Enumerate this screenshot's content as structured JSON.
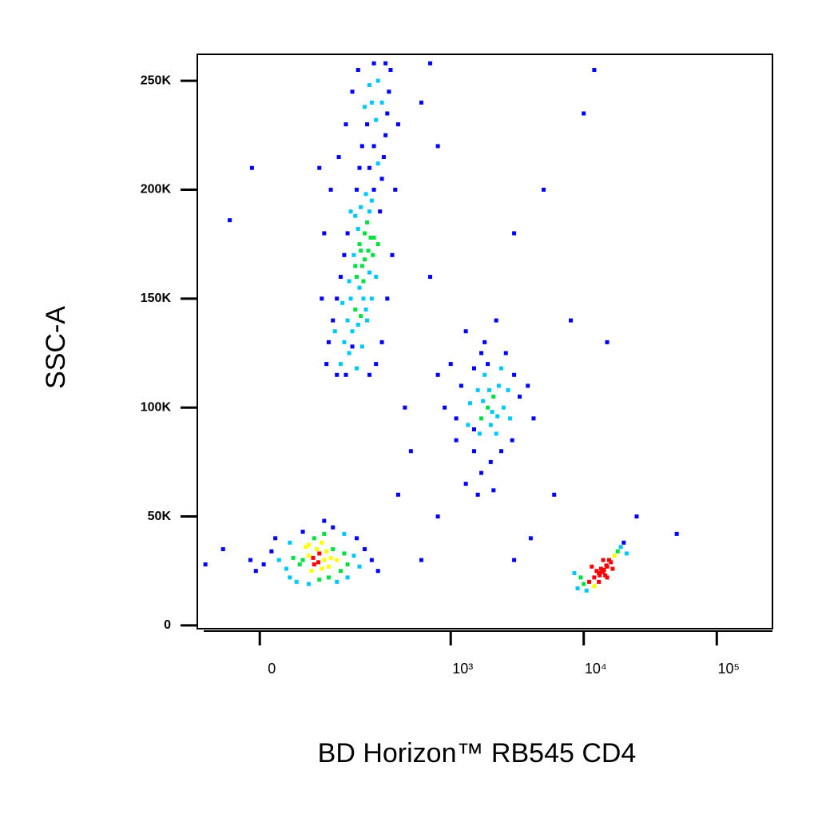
{
  "chart_data": {
    "type": "scatter",
    "xlabel": "BD Horizon™ RB545 CD4",
    "ylabel": "SSC-A",
    "x_scale": "biexponential",
    "xlim": [
      -96,
      262144
    ],
    "ylim": [
      -1500,
      262144
    ],
    "xticks": [
      0,
      {
        "value": 1000,
        "label": "10³"
      },
      {
        "value": 10000,
        "label": "10⁴"
      },
      {
        "value": 100000,
        "label": "10⁵"
      }
    ],
    "yticks": [
      0,
      {
        "value": 50000,
        "label": "50K"
      },
      {
        "value": 100000,
        "label": "100K"
      },
      {
        "value": 150000,
        "label": "150K"
      },
      {
        "value": 200000,
        "label": "200K"
      },
      {
        "value": 250000,
        "label": "250K"
      }
    ],
    "colormap": [
      "#0000ff",
      "#00c8ff",
      "#00e040",
      "#ffff00",
      "#ff0000"
    ],
    "x": [
      180,
      200,
      210,
      190,
      220,
      230,
      170,
      160,
      200,
      240,
      250,
      260,
      220,
      205,
      195,
      185,
      175,
      150,
      165,
      140,
      130,
      190,
      210,
      230,
      250,
      270,
      280,
      290,
      300,
      310,
      320,
      330,
      340,
      350,
      280,
      250,
      230,
      210,
      200,
      190,
      170,
      160,
      150,
      140,
      130,
      120,
      110,
      240,
      260,
      270,
      300,
      320,
      260,
      240,
      220,
      280,
      260,
      240,
      215,
      195,
      175,
      155,
      225,
      205,
      185,
      235,
      245,
      255,
      215,
      225,
      205,
      185,
      165,
      145,
      125,
      105,
      95,
      100,
      115,
      135,
      155,
      175,
      195,
      380,
      400,
      360,
      330,
      300,
      270,
      240,
      90,
      60,
      70,
      80,
      90,
      100,
      110,
      75,
      85,
      95,
      65,
      55,
      45,
      35,
      25,
      120,
      130,
      140,
      150,
      160,
      180,
      200,
      220,
      250,
      280,
      15,
      5,
      -5,
      -12,
      40,
      50,
      70,
      90,
      110,
      130,
      160,
      190,
      150,
      120,
      100,
      80,
      60,
      40,
      20,
      100,
      70,
      105,
      88,
      78,
      115,
      95,
      1900,
      2100,
      1700,
      2300,
      1500,
      1800,
      2000,
      2500,
      1600,
      2200,
      1400,
      2800,
      1200,
      3000,
      1100,
      3300,
      1000,
      2600,
      1800,
      1300,
      2200,
      900,
      800,
      3800,
      4200,
      1500,
      2000,
      1700,
      1300,
      2400,
      1100,
      2900,
      1600,
      2100,
      1900,
      1700,
      2400,
      1500,
      2700,
      1350,
      2050,
      1750,
      1950,
      2250,
      1650,
      14000,
      13000,
      15000,
      12000,
      16000,
      13500,
      14500,
      12500,
      15500,
      11000,
      17000,
      18000,
      10000,
      9500,
      11500,
      13000,
      15000,
      16500,
      19000,
      20000,
      9000,
      12000,
      14000,
      13800,
      14200,
      13200,
      14800,
      21000,
      8500,
      10500,
      600,
      800,
      700,
      5000,
      3000,
      50000,
      25000,
      10000,
      12000,
      15000,
      8000,
      500,
      400,
      -50,
      -80,
      600,
      3000,
      6000,
      -40,
      -10,
      450,
      700,
      4000,
      800
    ],
    "y": [
      170000,
      175000,
      165000,
      160000,
      180000,
      185000,
      150000,
      140000,
      155000,
      190000,
      195000,
      200000,
      168000,
      172000,
      182000,
      145000,
      135000,
      130000,
      125000,
      120000,
      115000,
      118000,
      128000,
      140000,
      150000,
      160000,
      175000,
      190000,
      205000,
      215000,
      225000,
      235000,
      245000,
      255000,
      250000,
      240000,
      230000,
      220000,
      210000,
      200000,
      190000,
      180000,
      170000,
      160000,
      150000,
      140000,
      130000,
      210000,
      220000,
      232000,
      240000,
      258000,
      258000,
      248000,
      238000,
      212000,
      178000,
      162000,
      150000,
      138000,
      128000,
      115000,
      198000,
      192000,
      188000,
      172000,
      178000,
      170000,
      158000,
      145000,
      142000,
      165000,
      158000,
      148000,
      135000,
      120000,
      150000,
      180000,
      200000,
      215000,
      230000,
      245000,
      255000,
      200000,
      230000,
      170000,
      150000,
      130000,
      120000,
      115000,
      210000,
      30000,
      32000,
      28000,
      33000,
      30000,
      27000,
      25000,
      35000,
      26000,
      36000,
      28000,
      31000,
      26000,
      30000,
      35000,
      30000,
      25000,
      33000,
      28000,
      32000,
      27000,
      35000,
      30000,
      25000,
      34000,
      28000,
      25000,
      30000,
      22000,
      20000,
      19000,
      21000,
      22000,
      20000,
      22000,
      40000,
      42000,
      45000,
      42000,
      40000,
      43000,
      38000,
      40000,
      48000,
      37000,
      34000,
      29000,
      31000,
      31000,
      38000,
      100000,
      105000,
      95000,
      110000,
      90000,
      115000,
      92000,
      100000,
      108000,
      88000,
      102000,
      95000,
      110000,
      115000,
      95000,
      105000,
      120000,
      125000,
      130000,
      135000,
      140000,
      100000,
      115000,
      110000,
      95000,
      80000,
      75000,
      70000,
      65000,
      80000,
      85000,
      85000,
      60000,
      62000,
      120000,
      125000,
      118000,
      118000,
      108000,
      92000,
      98000,
      103000,
      108000,
      96000,
      88000,
      25000,
      24000,
      27000,
      22000,
      29000,
      26000,
      23000,
      25000,
      30000,
      20000,
      32000,
      34000,
      19000,
      22000,
      27000,
      20000,
      22000,
      26000,
      36000,
      38000,
      17000,
      18000,
      30000,
      24500,
      25500,
      23000,
      27500,
      33000,
      24000,
      16000,
      240000,
      220000,
      258000,
      200000,
      180000,
      42000,
      50000,
      235000,
      255000,
      130000,
      140000,
      80000,
      60000,
      35000,
      28000,
      30000,
      30000,
      60000,
      186000,
      210000,
      100000,
      160000,
      40000,
      50000
    ]
  }
}
